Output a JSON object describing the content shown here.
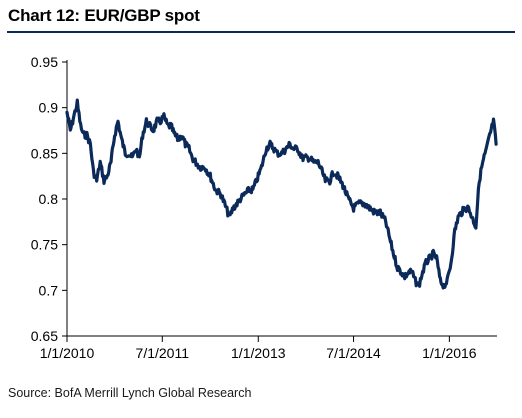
{
  "chart_data": {
    "type": "line",
    "title": "Chart 12: EUR/GBP spot",
    "source": "Source: BofA Merrill Lynch Global Research",
    "xlabel": "",
    "ylabel": "",
    "ylim": [
      0.65,
      0.95
    ],
    "yticks": [
      0.95,
      0.9,
      0.85,
      0.8,
      0.75,
      0.7,
      0.65
    ],
    "ytick_labels": [
      "0.95",
      "0.9",
      "0.85",
      "0.8",
      "0.75",
      "0.7",
      "0.65"
    ],
    "xlim": [
      "2010-01-01",
      "2016-09-30"
    ],
    "xticks": [
      "2010-01-01",
      "2011-07-01",
      "2013-01-01",
      "2014-07-01",
      "2016-01-01"
    ],
    "xtick_labels": [
      "1/1/2010",
      "7/1/2011",
      "1/1/2013",
      "7/1/2014",
      "1/1/2016"
    ],
    "grid": false,
    "line_color": "#0b2a5a",
    "series": [
      {
        "x": [
          "2010-01-01",
          "2010-01-20",
          "2010-02-15",
          "2010-03-01",
          "2010-03-20",
          "2010-04-05",
          "2010-04-25",
          "2010-05-15",
          "2010-06-01",
          "2010-06-20",
          "2010-07-10",
          "2010-08-01",
          "2010-08-20",
          "2010-09-10",
          "2010-10-01",
          "2010-10-20",
          "2010-11-10",
          "2010-12-01",
          "2010-12-20",
          "2011-01-10",
          "2011-02-01",
          "2011-02-20",
          "2011-03-10",
          "2011-04-01",
          "2011-04-20",
          "2011-05-10",
          "2011-06-01",
          "2011-06-20",
          "2011-07-10",
          "2011-08-01",
          "2011-08-20",
          "2011-09-10",
          "2011-10-01",
          "2011-10-20",
          "2011-11-10",
          "2011-12-01",
          "2011-12-20",
          "2012-01-10",
          "2012-02-01",
          "2012-03-01",
          "2012-04-01",
          "2012-05-01",
          "2012-06-01",
          "2012-07-01",
          "2012-07-20",
          "2012-08-10",
          "2012-09-01",
          "2012-09-20",
          "2012-10-15",
          "2012-11-10",
          "2012-12-01",
          "2013-01-01",
          "2013-01-20",
          "2013-02-15",
          "2013-03-10",
          "2013-04-01",
          "2013-04-20",
          "2013-05-15",
          "2013-06-10",
          "2013-07-01",
          "2013-07-20",
          "2013-08-15",
          "2013-09-10",
          "2013-10-01",
          "2013-10-20",
          "2013-11-15",
          "2013-12-10",
          "2014-01-01",
          "2014-01-20",
          "2014-02-15",
          "2014-03-10",
          "2014-04-01",
          "2014-05-01",
          "2014-06-01",
          "2014-07-01",
          "2014-08-01",
          "2014-09-01",
          "2014-10-01",
          "2014-11-01",
          "2014-12-01",
          "2015-01-01",
          "2015-01-20",
          "2015-02-15",
          "2015-03-10",
          "2015-04-01",
          "2015-04-20",
          "2015-05-15",
          "2015-06-01",
          "2015-06-20",
          "2015-07-10",
          "2015-08-01",
          "2015-08-20",
          "2015-09-10",
          "2015-10-01",
          "2015-10-20",
          "2015-11-10",
          "2015-12-01",
          "2015-12-20",
          "2016-01-10",
          "2016-02-01",
          "2016-02-20",
          "2016-03-10",
          "2016-04-01",
          "2016-04-20",
          "2016-05-10",
          "2016-06-01",
          "2016-06-20",
          "2016-07-10",
          "2016-08-01",
          "2016-08-20",
          "2016-09-10",
          "2016-09-25"
        ],
        "y": [
          0.895,
          0.875,
          0.895,
          0.905,
          0.88,
          0.87,
          0.87,
          0.86,
          0.83,
          0.82,
          0.84,
          0.82,
          0.825,
          0.84,
          0.87,
          0.885,
          0.865,
          0.85,
          0.85,
          0.845,
          0.855,
          0.845,
          0.87,
          0.885,
          0.88,
          0.875,
          0.885,
          0.885,
          0.89,
          0.88,
          0.88,
          0.87,
          0.865,
          0.87,
          0.86,
          0.855,
          0.845,
          0.84,
          0.835,
          0.835,
          0.825,
          0.81,
          0.805,
          0.79,
          0.78,
          0.79,
          0.795,
          0.8,
          0.805,
          0.81,
          0.81,
          0.825,
          0.835,
          0.855,
          0.86,
          0.855,
          0.85,
          0.85,
          0.855,
          0.86,
          0.855,
          0.855,
          0.845,
          0.845,
          0.845,
          0.84,
          0.84,
          0.83,
          0.82,
          0.82,
          0.83,
          0.825,
          0.815,
          0.8,
          0.79,
          0.795,
          0.795,
          0.79,
          0.785,
          0.785,
          0.775,
          0.76,
          0.74,
          0.725,
          0.72,
          0.715,
          0.72,
          0.72,
          0.71,
          0.705,
          0.72,
          0.73,
          0.735,
          0.74,
          0.735,
          0.71,
          0.705,
          0.71,
          0.73,
          0.765,
          0.78,
          0.785,
          0.79,
          0.79,
          0.78,
          0.77,
          0.82,
          0.84,
          0.855,
          0.87,
          0.885,
          0.86
        ]
      }
    ]
  }
}
